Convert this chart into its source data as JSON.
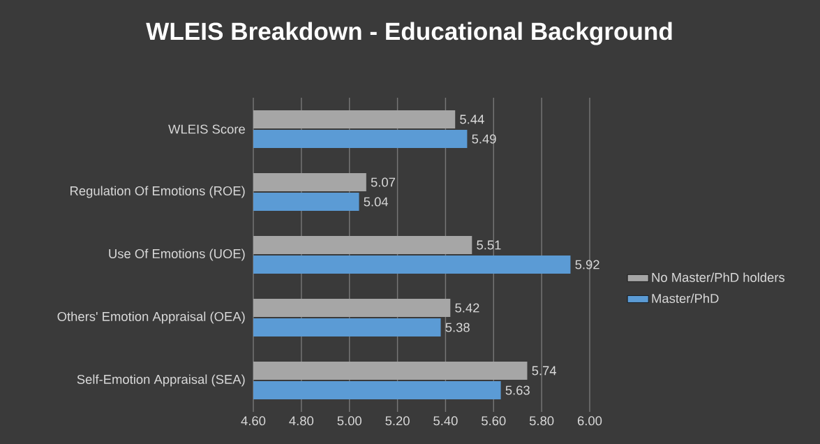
{
  "chart_data": {
    "type": "bar",
    "orientation": "horizontal",
    "title": "WLEIS Breakdown - Educational Background",
    "categories": [
      "WLEIS Score",
      "Regulation Of Emotions (ROE)",
      "Use Of Emotions (UOE)",
      "Others' Emotion Appraisal (OEA)",
      "Self-Emotion Appraisal (SEA)"
    ],
    "series": [
      {
        "name": "No Master/PhD holders",
        "color": "#a6a6a6",
        "values": [
          5.44,
          5.07,
          5.51,
          5.42,
          5.74
        ]
      },
      {
        "name": "Master/PhD",
        "color": "#5b9bd5",
        "values": [
          5.49,
          5.04,
          5.92,
          5.38,
          5.63
        ]
      }
    ],
    "xlim": [
      4.6,
      6.0
    ],
    "xticks": [
      {
        "value": 4.6,
        "label": "4.60"
      },
      {
        "value": 4.8,
        "label": "4.80"
      },
      {
        "value": 5.0,
        "label": "5.00"
      },
      {
        "value": 5.2,
        "label": "5.20"
      },
      {
        "value": 5.4,
        "label": "5.40"
      },
      {
        "value": 5.6,
        "label": "5.60"
      },
      {
        "value": 5.8,
        "label": "5.80"
      },
      {
        "value": 6.0,
        "label": "6.00"
      }
    ],
    "grid": "x",
    "legend": "right",
    "data_labels": true
  }
}
